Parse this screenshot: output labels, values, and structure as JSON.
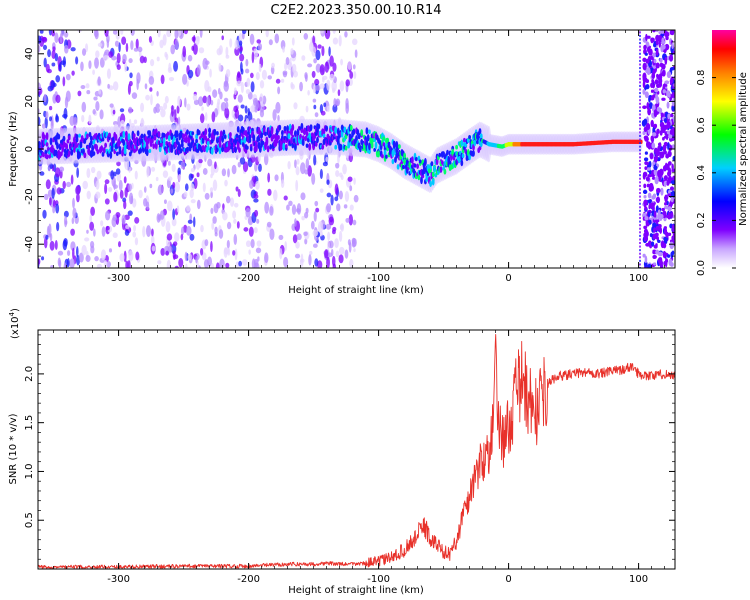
{
  "title": "C2E2.2023.350.00.10.R14",
  "chart_data": [
    {
      "type": "heatmap",
      "xlabel": "Height of straight line (km)",
      "ylabel": "Frequency (Hz)",
      "xlim": [
        -362,
        128
      ],
      "ylim": [
        -50,
        50
      ],
      "xticks": [
        -300,
        -200,
        -100,
        0,
        100
      ],
      "xtick_labels": [
        "-300",
        "-200",
        "-100",
        "0",
        "100"
      ],
      "yticks": [
        -40,
        -20,
        0,
        20,
        40
      ],
      "ytick_labels": [
        "-40",
        "-20",
        "0",
        "20",
        "40"
      ],
      "ridge": {
        "x": [
          -360,
          -300,
          -250,
          -200,
          -160,
          -130,
          -110,
          -100,
          -90,
          -80,
          -70,
          -60,
          -55,
          -40,
          -30,
          -22,
          -15,
          -5,
          0,
          20,
          50,
          80,
          100
        ],
        "y": [
          1,
          2,
          3,
          4,
          5,
          5,
          4,
          2,
          -1,
          -5,
          -8,
          -11,
          -7,
          -3,
          1,
          4,
          2,
          1,
          2,
          2,
          2,
          3,
          3
        ]
      },
      "features": {
        "noisy_region_x": [
          -362,
          -120
        ],
        "clean_line_x": [
          -20,
          102
        ],
        "right_noise_x": [
          104,
          128
        ]
      },
      "colorbar": {
        "label": "Normalized spectral amplitude",
        "range": [
          0.0,
          1.0
        ],
        "ticks": [
          0.0,
          0.2,
          0.4,
          0.6,
          0.8
        ],
        "tick_labels": [
          "0.0",
          "0.2",
          "0.4",
          "0.6",
          "0.8"
        ],
        "colors": [
          "#ffffff",
          "#7f00ff",
          "#0000ff",
          "#00d0ff",
          "#00ff00",
          "#ffff00",
          "#ff8000",
          "#ff0000",
          "#ff00a0"
        ]
      }
    },
    {
      "type": "line",
      "xlabel": "Height of straight line (km)",
      "ylabel": "SNR (10 * v/v)",
      "ylabel_scale": "(x10",
      "ylabel_exp": "4",
      "ylabel_scale_close": ")",
      "xlim": [
        -362,
        128
      ],
      "ylim": [
        0,
        2.45
      ],
      "xticks": [
        -300,
        -200,
        -100,
        0,
        100
      ],
      "xtick_labels": [
        "-300",
        "-200",
        "-100",
        "0",
        "100"
      ],
      "yticks": [
        0.5,
        1.0,
        1.5,
        2.0
      ],
      "ytick_labels": [
        "0.5",
        "1.0",
        "1.5",
        "2.0"
      ],
      "color": "#e8312a",
      "series": [
        {
          "x": [
            -362,
            -300,
            -250,
            -200,
            -170,
            -150,
            -140,
            -130,
            -120,
            -110,
            -100,
            -90,
            -80,
            -70,
            -65,
            -60,
            -55,
            -50,
            -45,
            -40,
            -35,
            -30,
            -25,
            -20,
            -15,
            -12,
            -10,
            -8,
            -5,
            0,
            5,
            10,
            15,
            20,
            25,
            30,
            35,
            40,
            50,
            60,
            70,
            80,
            90,
            95,
            100,
            110,
            120,
            128
          ],
          "y": [
            0.02,
            0.02,
            0.03,
            0.03,
            0.05,
            0.05,
            0.06,
            0.05,
            0.05,
            0.06,
            0.08,
            0.12,
            0.2,
            0.35,
            0.45,
            0.3,
            0.25,
            0.18,
            0.15,
            0.3,
            0.55,
            0.75,
            1.0,
            1.1,
            1.25,
            1.4,
            2.45,
            1.55,
            1.3,
            1.45,
            1.75,
            1.95,
            1.75,
            1.6,
            1.7,
            1.9,
            1.95,
            1.98,
            2.0,
            2.02,
            2.0,
            2.03,
            2.05,
            2.08,
            2.0,
            1.98,
            2.0,
            1.98
          ]
        }
      ]
    }
  ]
}
